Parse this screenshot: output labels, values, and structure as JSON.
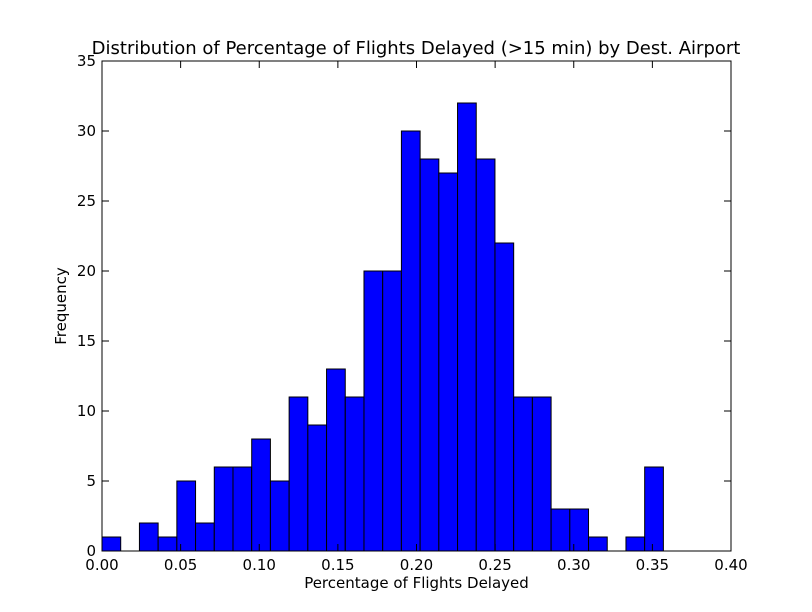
{
  "chart_data": {
    "type": "bar",
    "title": "Distribution of Percentage of Flights Delayed (>15 min) by Dest. Airport",
    "xlabel": "Percentage of Flights Delayed",
    "ylabel": "Frequency",
    "xlim": [
      0.0,
      0.4
    ],
    "ylim": [
      0,
      35
    ],
    "x_ticks": [
      "0.00",
      "0.05",
      "0.10",
      "0.15",
      "0.20",
      "0.25",
      "0.30",
      "0.35",
      "0.40"
    ],
    "y_ticks": [
      "0",
      "5",
      "10",
      "15",
      "20",
      "25",
      "30",
      "35"
    ],
    "grid": false,
    "bar_color": "#0000ff",
    "edge_color": "#000000",
    "bins": [
      {
        "start": 0.0,
        "end": 0.0119,
        "count": 1
      },
      {
        "start": 0.0119,
        "end": 0.0238,
        "count": 0
      },
      {
        "start": 0.0238,
        "end": 0.0357,
        "count": 2
      },
      {
        "start": 0.0357,
        "end": 0.0476,
        "count": 1
      },
      {
        "start": 0.0476,
        "end": 0.0595,
        "count": 5
      },
      {
        "start": 0.0595,
        "end": 0.0714,
        "count": 2
      },
      {
        "start": 0.0714,
        "end": 0.0833,
        "count": 6
      },
      {
        "start": 0.0833,
        "end": 0.0952,
        "count": 6
      },
      {
        "start": 0.0952,
        "end": 0.1071,
        "count": 8
      },
      {
        "start": 0.1071,
        "end": 0.119,
        "count": 5
      },
      {
        "start": 0.119,
        "end": 0.1309,
        "count": 11
      },
      {
        "start": 0.1309,
        "end": 0.1428,
        "count": 9
      },
      {
        "start": 0.1428,
        "end": 0.1547,
        "count": 13
      },
      {
        "start": 0.1547,
        "end": 0.1666,
        "count": 11
      },
      {
        "start": 0.1666,
        "end": 0.1785,
        "count": 20
      },
      {
        "start": 0.1785,
        "end": 0.1904,
        "count": 20
      },
      {
        "start": 0.1904,
        "end": 0.2023,
        "count": 30
      },
      {
        "start": 0.2023,
        "end": 0.2142,
        "count": 28
      },
      {
        "start": 0.2142,
        "end": 0.2261,
        "count": 27
      },
      {
        "start": 0.2261,
        "end": 0.238,
        "count": 32
      },
      {
        "start": 0.238,
        "end": 0.2499,
        "count": 28
      },
      {
        "start": 0.2499,
        "end": 0.2618,
        "count": 22
      },
      {
        "start": 0.2618,
        "end": 0.2737,
        "count": 11
      },
      {
        "start": 0.2737,
        "end": 0.2856,
        "count": 11
      },
      {
        "start": 0.2856,
        "end": 0.2975,
        "count": 3
      },
      {
        "start": 0.2975,
        "end": 0.3094,
        "count": 3
      },
      {
        "start": 0.3094,
        "end": 0.3213,
        "count": 1
      },
      {
        "start": 0.3213,
        "end": 0.3332,
        "count": 0
      },
      {
        "start": 0.3332,
        "end": 0.3451,
        "count": 1
      },
      {
        "start": 0.3451,
        "end": 0.357,
        "count": 6
      }
    ]
  }
}
